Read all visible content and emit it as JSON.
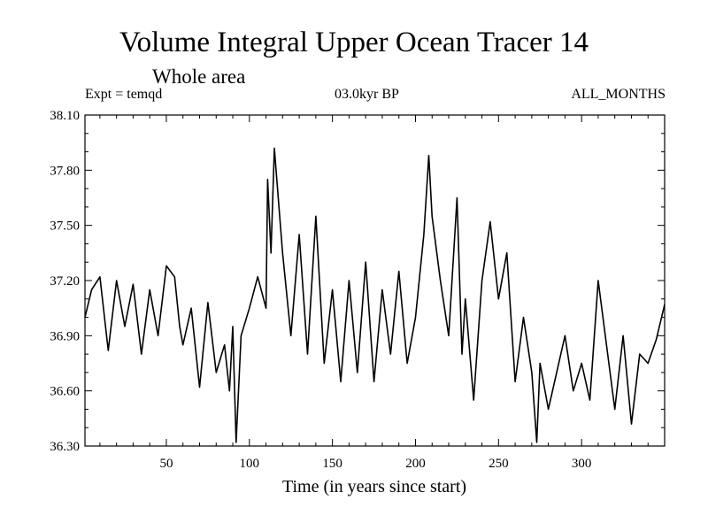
{
  "chart_data": {
    "type": "line",
    "title": "Volume Integral Upper Ocean Tracer 14",
    "subtitle": "Whole area",
    "header_left": "Expt = temqd",
    "header_center": "03.0kyr BP",
    "header_right": "ALL_MONTHS",
    "xlabel": "Time (in years since start)",
    "ylabel": "",
    "xlim": [
      1,
      350
    ],
    "ylim": [
      36.3,
      38.1
    ],
    "xticks": [
      50,
      100,
      150,
      200,
      250,
      300
    ],
    "yticks": [
      "36.30",
      "36.60",
      "36.90",
      "37.20",
      "37.50",
      "37.80",
      "38.10"
    ],
    "grid": false,
    "series": [
      {
        "name": "Tracer 14",
        "x": [
          1,
          5,
          10,
          15,
          20,
          25,
          30,
          35,
          40,
          45,
          50,
          55,
          58,
          60,
          65,
          70,
          75,
          80,
          85,
          88,
          90,
          92,
          95,
          100,
          105,
          110,
          111,
          113,
          115,
          120,
          125,
          130,
          135,
          140,
          145,
          150,
          155,
          160,
          165,
          170,
          175,
          180,
          185,
          190,
          195,
          200,
          205,
          208,
          210,
          215,
          220,
          225,
          228,
          230,
          235,
          240,
          245,
          250,
          255,
          260,
          265,
          270,
          273,
          275,
          280,
          285,
          290,
          295,
          300,
          305,
          310,
          315,
          320,
          325,
          330,
          335,
          340,
          345,
          350
        ],
        "y": [
          37.0,
          37.15,
          37.22,
          36.82,
          37.2,
          36.95,
          37.18,
          36.8,
          37.15,
          36.9,
          37.28,
          37.22,
          36.95,
          36.85,
          37.05,
          36.62,
          37.08,
          36.7,
          36.85,
          36.6,
          36.95,
          36.32,
          36.9,
          37.05,
          37.22,
          37.05,
          37.75,
          37.35,
          37.92,
          37.35,
          36.9,
          37.45,
          36.8,
          37.55,
          36.75,
          37.15,
          36.65,
          37.2,
          36.7,
          37.3,
          36.65,
          37.15,
          36.8,
          37.25,
          36.75,
          37.0,
          37.45,
          37.88,
          37.55,
          37.2,
          36.9,
          37.65,
          36.8,
          37.1,
          36.55,
          37.2,
          37.52,
          37.1,
          37.35,
          36.65,
          37.0,
          36.7,
          36.32,
          36.75,
          36.5,
          36.7,
          36.9,
          36.6,
          36.75,
          36.55,
          37.2,
          36.85,
          36.5,
          36.9,
          36.42,
          36.8,
          36.75,
          36.88,
          37.07
        ]
      }
    ]
  }
}
